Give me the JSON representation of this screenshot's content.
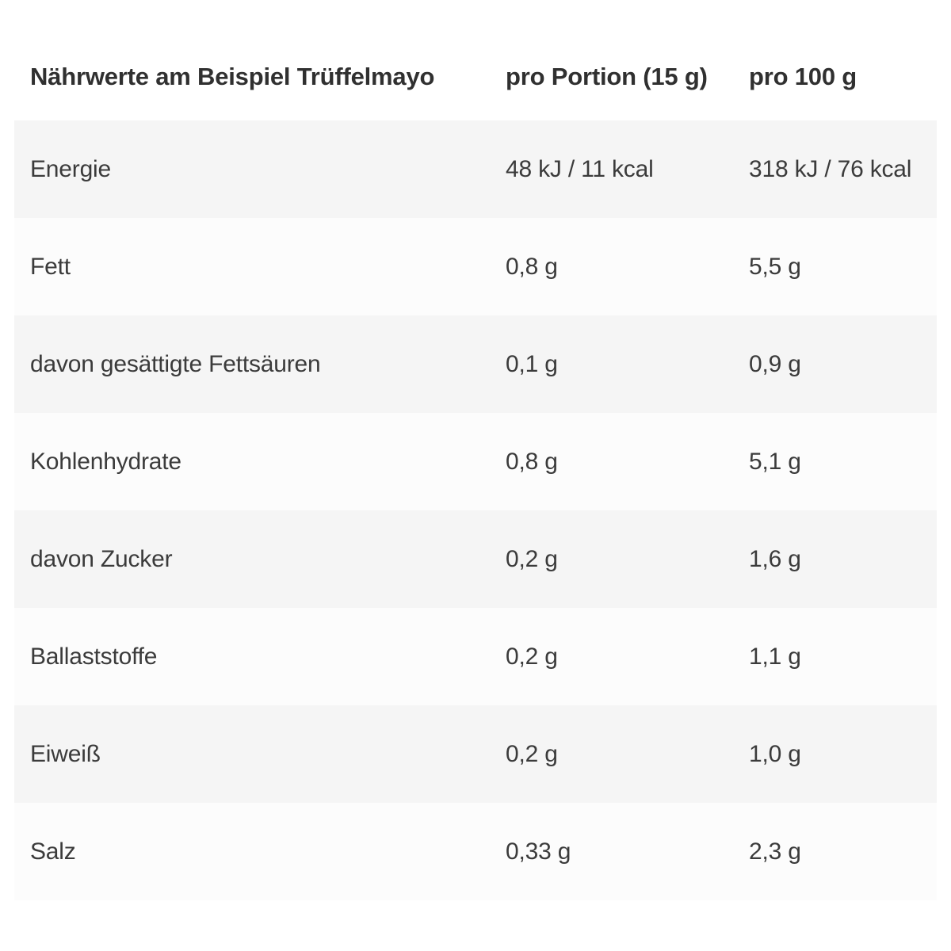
{
  "table": {
    "header": {
      "col1": "Nährwerte am Beispiel Trüffelmayo",
      "col2": "pro Portion (15 g)",
      "col3": "pro 100 g"
    },
    "rows": [
      {
        "label": "Energie",
        "portion": "48 kJ / 11 kcal",
        "per100": "318 kJ / 76 kcal"
      },
      {
        "label": "Fett",
        "portion": "0,8 g",
        "per100": "5,5 g"
      },
      {
        "label": "davon gesättigte Fettsäuren",
        "portion": "0,1 g",
        "per100": "0,9 g"
      },
      {
        "label": "Kohlenhydrate",
        "portion": "0,8 g",
        "per100": "5,1 g"
      },
      {
        "label": "davon Zucker",
        "portion": "0,2 g",
        "per100": "1,6 g"
      },
      {
        "label": "Ballaststoffe",
        "portion": "0,2 g",
        "per100": "1,1 g"
      },
      {
        "label": "Eiweiß",
        "portion": "0,2 g",
        "per100": "1,0 g"
      },
      {
        "label": "Salz",
        "portion": "0,33 g",
        "per100": "2,3 g"
      }
    ],
    "colors": {
      "row_odd_bg": "#f5f5f5",
      "row_even_bg": "#fcfcfc",
      "text": "#3b3b3b",
      "header_text": "#303030"
    }
  }
}
